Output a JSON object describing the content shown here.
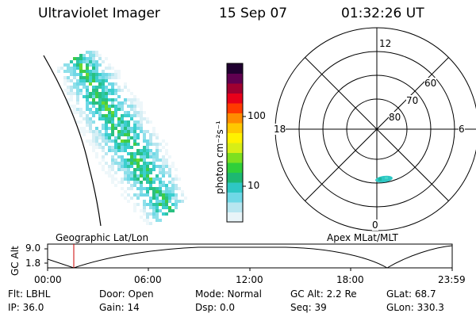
{
  "header": {
    "title": "Ultraviolet Imager",
    "date": "15 Sep 07",
    "time": "01:32:26 UT"
  },
  "colorbar": {
    "unit_label": "photon cm⁻²s⁻¹",
    "ticks": [
      "100",
      "10"
    ],
    "colors": [
      "#e8f4f8",
      "#b8e6f0",
      "#6fd8e6",
      "#2ec7c4",
      "#1db872",
      "#2fcf3a",
      "#7de020",
      "#d7ee16",
      "#fff200",
      "#ffc800",
      "#ff8c00",
      "#ff3a00",
      "#e8001a",
      "#a00030",
      "#600050",
      "#200030"
    ]
  },
  "polar": {
    "mlt_labels": {
      "top": "12",
      "right": "6",
      "bottom": "0",
      "left": "18"
    },
    "lat_labels": [
      "60",
      "70",
      "80"
    ]
  },
  "map": {
    "left_label": "Geographic Lat/Lon",
    "right_label": "Apex MLat/MLT"
  },
  "altitude_plot": {
    "ylabel": "GC Alt",
    "yticks": [
      "9.0",
      "1.8"
    ],
    "xticks": [
      "00:00",
      "06:00",
      "12:00",
      "18:00",
      "23:59"
    ],
    "marker_color": "#cc0000"
  },
  "info": {
    "flt": "Flt: LBHL",
    "door": "Door: Open",
    "mode": "Mode: Normal",
    "gcalt": "GC Alt: 2.2 Re",
    "glat": "GLat:  68.7",
    "ip": "IP: 36.0",
    "gain": "Gain: 14",
    "dsp": "Dsp:     0.0",
    "seq": "Seq: 39",
    "glon": "GLon: 330.3"
  }
}
